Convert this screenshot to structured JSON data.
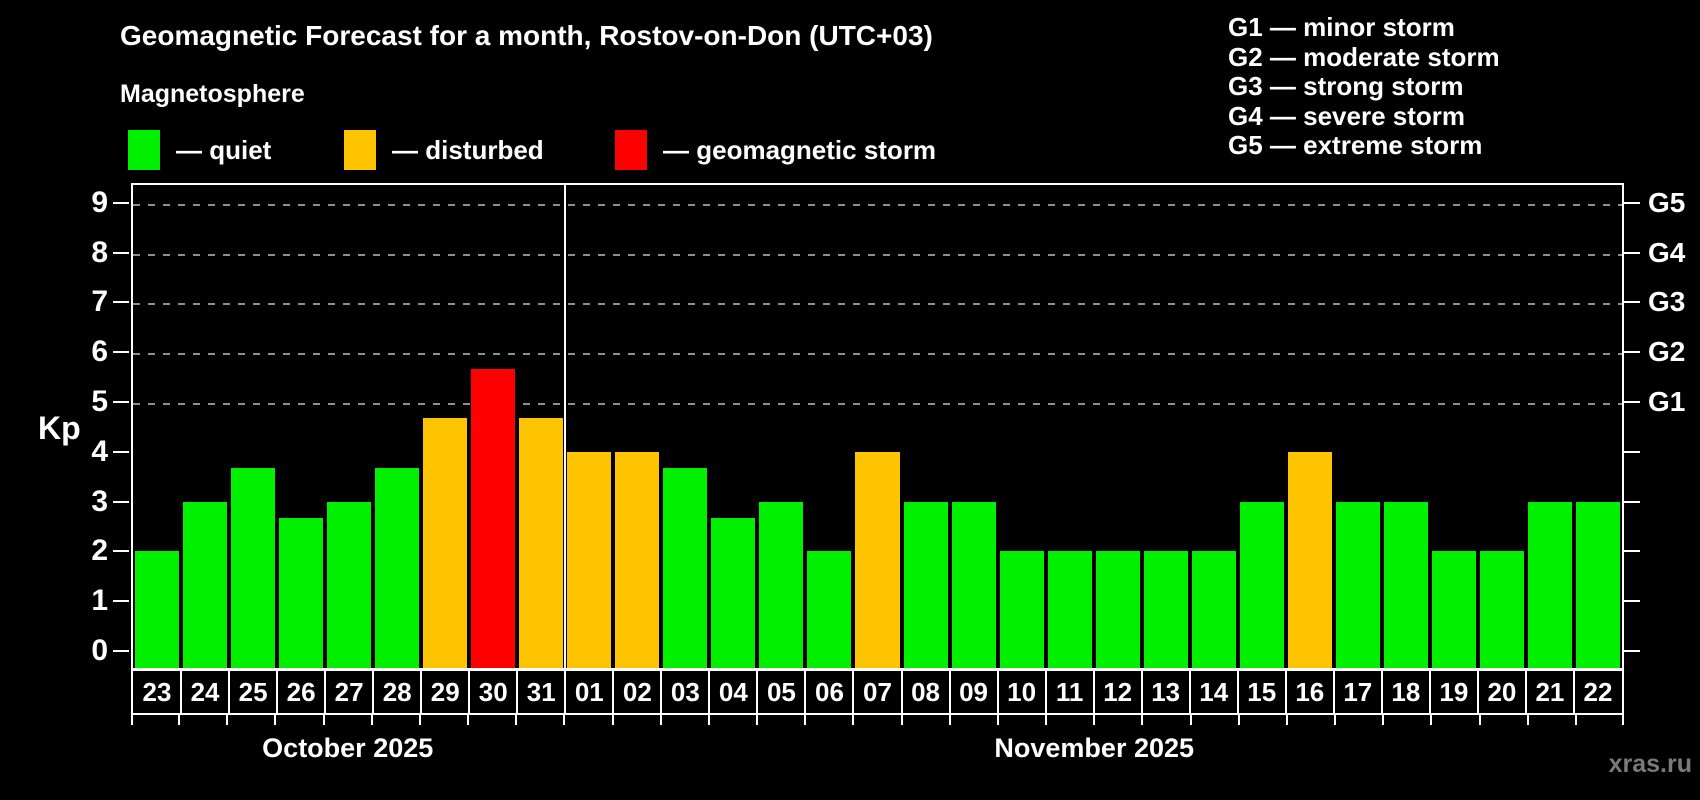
{
  "watermark": "xras.ru",
  "chart_data": {
    "type": "bar",
    "title": "Geomagnetic Forecast for a month, Rostov-on-Don (UTC+03)",
    "subtitle": "Magnetosphere",
    "ylabel": "Kp",
    "ylim": [
      0,
      9.4
    ],
    "yticks": [
      0,
      1,
      2,
      3,
      4,
      5,
      6,
      7,
      8,
      9
    ],
    "grid_values": [
      5,
      6,
      7,
      8,
      9
    ],
    "grid_on": true,
    "legend": {
      "position": "top-left",
      "items": [
        {
          "label": "— quiet",
          "status": "quiet",
          "color": "#00f000"
        },
        {
          "label": "— disturbed",
          "status": "disturbed",
          "color": "#ffc400"
        },
        {
          "label": "— geomagnetic storm",
          "status": "storm",
          "color": "#ff0000"
        }
      ]
    },
    "storm_scale": [
      "G1 — minor storm",
      "G2 — moderate storm",
      "G3 — strong storm",
      "G4 — severe storm",
      "G5 — extreme storm"
    ],
    "right_axis": [
      {
        "value": 5,
        "label": "G1"
      },
      {
        "value": 6,
        "label": "G2"
      },
      {
        "value": 7,
        "label": "G3"
      },
      {
        "value": 8,
        "label": "G4"
      },
      {
        "value": 9,
        "label": "G5"
      }
    ],
    "colors": {
      "quiet": "#00f000",
      "disturbed": "#ffc400",
      "storm": "#ff0000"
    },
    "months": [
      {
        "label": "October 2025",
        "days": [
          {
            "day": "23",
            "kp": 2.0,
            "status": "quiet"
          },
          {
            "day": "24",
            "kp": 3.0,
            "status": "quiet"
          },
          {
            "day": "25",
            "kp": 3.67,
            "status": "quiet"
          },
          {
            "day": "26",
            "kp": 2.67,
            "status": "quiet"
          },
          {
            "day": "27",
            "kp": 3.0,
            "status": "quiet"
          },
          {
            "day": "28",
            "kp": 3.67,
            "status": "quiet"
          },
          {
            "day": "29",
            "kp": 4.67,
            "status": "disturbed"
          },
          {
            "day": "30",
            "kp": 5.67,
            "status": "storm"
          },
          {
            "day": "31",
            "kp": 4.67,
            "status": "disturbed"
          }
        ]
      },
      {
        "label": "November 2025",
        "days": [
          {
            "day": "01",
            "kp": 4.0,
            "status": "disturbed"
          },
          {
            "day": "02",
            "kp": 4.0,
            "status": "disturbed"
          },
          {
            "day": "03",
            "kp": 3.67,
            "status": "quiet"
          },
          {
            "day": "04",
            "kp": 2.67,
            "status": "quiet"
          },
          {
            "day": "05",
            "kp": 3.0,
            "status": "quiet"
          },
          {
            "day": "06",
            "kp": 2.0,
            "status": "quiet"
          },
          {
            "day": "07",
            "kp": 4.0,
            "status": "disturbed"
          },
          {
            "day": "08",
            "kp": 3.0,
            "status": "quiet"
          },
          {
            "day": "09",
            "kp": 3.0,
            "status": "quiet"
          },
          {
            "day": "10",
            "kp": 2.0,
            "status": "quiet"
          },
          {
            "day": "11",
            "kp": 2.0,
            "status": "quiet"
          },
          {
            "day": "12",
            "kp": 2.0,
            "status": "quiet"
          },
          {
            "day": "13",
            "kp": 2.0,
            "status": "quiet"
          },
          {
            "day": "14",
            "kp": 2.0,
            "status": "quiet"
          },
          {
            "day": "15",
            "kp": 3.0,
            "status": "quiet"
          },
          {
            "day": "16",
            "kp": 4.0,
            "status": "disturbed"
          },
          {
            "day": "17",
            "kp": 3.0,
            "status": "quiet"
          },
          {
            "day": "18",
            "kp": 3.0,
            "status": "quiet"
          },
          {
            "day": "19",
            "kp": 2.0,
            "status": "quiet"
          },
          {
            "day": "20",
            "kp": 2.0,
            "status": "quiet"
          },
          {
            "day": "21",
            "kp": 3.0,
            "status": "quiet"
          },
          {
            "day": "22",
            "kp": 3.0,
            "status": "quiet"
          }
        ]
      }
    ]
  }
}
